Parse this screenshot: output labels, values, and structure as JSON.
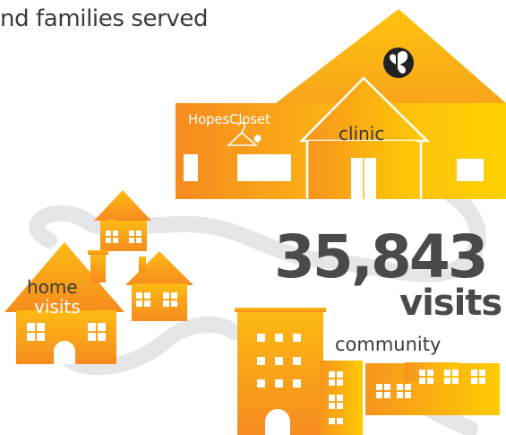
{
  "headline": "nd families served",
  "clinic_building": {
    "store_name": "HopesCloset",
    "label": "clinic",
    "logo_icon": "butterfly-icon"
  },
  "stat": {
    "value": "35,843",
    "unit": "visits"
  },
  "home_visits": {
    "line1": "home",
    "line2": "visits"
  },
  "community": {
    "label": "community"
  },
  "colors": {
    "orange_dark": "#f68b1f",
    "orange_light": "#fdb913",
    "yellow": "#ffd200",
    "path_gray": "#e4e6ea",
    "text_dark": "#3a3a3a",
    "stat_gray": "#4a4a4a"
  }
}
